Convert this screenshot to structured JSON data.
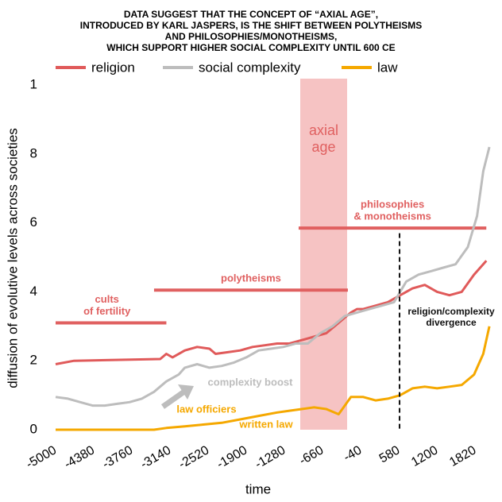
{
  "chart_data": {
    "type": "line",
    "title": [
      "DATA SUGGEST THAT THE CONCEPT OF “AXIAL AGE”,",
      "INTRODUCED BY KARL JASPERS, IS THE SHIFT BETWEEN POLYTHEISMS",
      "AND PHILOSOPHIES/MONOTHEISMS,",
      "WHICH SUPPORT HIGHER SOCIAL COMPLEXITY UNTIL 600 CE"
    ],
    "x_label": "time",
    "y_label": "diffusion of evolutive levels across societies",
    "xlim": [
      -5000,
      2100
    ],
    "ylim": [
      0,
      10
    ],
    "xticks": [
      -5000,
      -4380,
      -3760,
      -3140,
      -2520,
      -1900,
      -1280,
      -660,
      -40,
      580,
      1200,
      1820
    ],
    "yticks": [
      0,
      2,
      4,
      6,
      8,
      {
        "value": 10,
        "label": "1"
      }
    ],
    "series": [
      {
        "name": "religion",
        "color": "#e05a5a",
        "x": [
          -5000,
          -4700,
          -3300,
          -3200,
          -3100,
          -2900,
          -2700,
          -2500,
          -2400,
          -2200,
          -2000,
          -1800,
          -1600,
          -1400,
          -1200,
          -1000,
          -800,
          -600,
          -400,
          -200,
          -100,
          0,
          200,
          400,
          600,
          800,
          1000,
          1200,
          1400,
          1600,
          1800,
          2000
        ],
        "values": [
          1.9,
          2.0,
          2.05,
          2.2,
          2.1,
          2.3,
          2.4,
          2.35,
          2.2,
          2.25,
          2.3,
          2.4,
          2.45,
          2.5,
          2.5,
          2.6,
          2.7,
          2.8,
          3.1,
          3.4,
          3.5,
          3.5,
          3.6,
          3.7,
          3.9,
          4.1,
          4.2,
          4.0,
          3.9,
          4.0,
          4.5,
          4.9
        ]
      },
      {
        "name": "social complexity",
        "color": "#bdbdbd",
        "x": [
          -5000,
          -4800,
          -4600,
          -4400,
          -4200,
          -4000,
          -3800,
          -3600,
          -3400,
          -3200,
          -3000,
          -2900,
          -2700,
          -2500,
          -2300,
          -2100,
          -1900,
          -1700,
          -1500,
          -1300,
          -1100,
          -900,
          -700,
          -500,
          -300,
          -100,
          100,
          300,
          500,
          700,
          900,
          1100,
          1300,
          1500,
          1700,
          1850,
          1950,
          2050
        ],
        "values": [
          0.95,
          0.9,
          0.8,
          0.7,
          0.7,
          0.75,
          0.8,
          0.9,
          1.1,
          1.4,
          1.6,
          1.8,
          1.9,
          1.8,
          1.85,
          1.95,
          2.1,
          2.3,
          2.35,
          2.4,
          2.5,
          2.5,
          2.8,
          3.0,
          3.3,
          3.4,
          3.5,
          3.6,
          3.7,
          4.3,
          4.5,
          4.6,
          4.7,
          4.8,
          5.3,
          6.2,
          7.5,
          8.2
        ]
      },
      {
        "name": "law",
        "color": "#f5a800",
        "x": [
          -5000,
          -3400,
          -3200,
          -2900,
          -2600,
          -2300,
          -2000,
          -1700,
          -1400,
          -1200,
          -1000,
          -800,
          -600,
          -400,
          -300,
          -200,
          0,
          200,
          400,
          600,
          800,
          1000,
          1200,
          1400,
          1600,
          1800,
          1950,
          2050
        ],
        "values": [
          0,
          0,
          0.05,
          0.1,
          0.15,
          0.2,
          0.3,
          0.4,
          0.5,
          0.55,
          0.6,
          0.65,
          0.6,
          0.45,
          0.7,
          0.95,
          0.95,
          0.85,
          0.9,
          1.0,
          1.2,
          1.25,
          1.2,
          1.25,
          1.3,
          1.6,
          2.2,
          3.0
        ]
      }
    ],
    "ranges": [
      {
        "label": [
          "cults",
          "of fertility"
        ],
        "x": [
          -5000,
          -3200
        ],
        "y": 3.1,
        "color": "#e06060"
      },
      {
        "label": [
          "polytheisms"
        ],
        "x": [
          -3400,
          -250
        ],
        "y": 4.05,
        "color": "#e06060"
      },
      {
        "label": [
          "philosophies",
          "& monotheisms"
        ],
        "x": [
          -1050,
          2000
        ],
        "y": 5.85,
        "color": "#e06060"
      }
    ],
    "band": {
      "label": [
        "axial",
        "age"
      ],
      "x": [
        -1024,
        -262
      ],
      "color": "#f6c3c3"
    },
    "divergence": {
      "label": [
        "religion/complexity",
        "divergence"
      ],
      "x": 590,
      "y": 5.7
    },
    "notes": [
      "complexity boost",
      "law officiers",
      "written law"
    ]
  }
}
